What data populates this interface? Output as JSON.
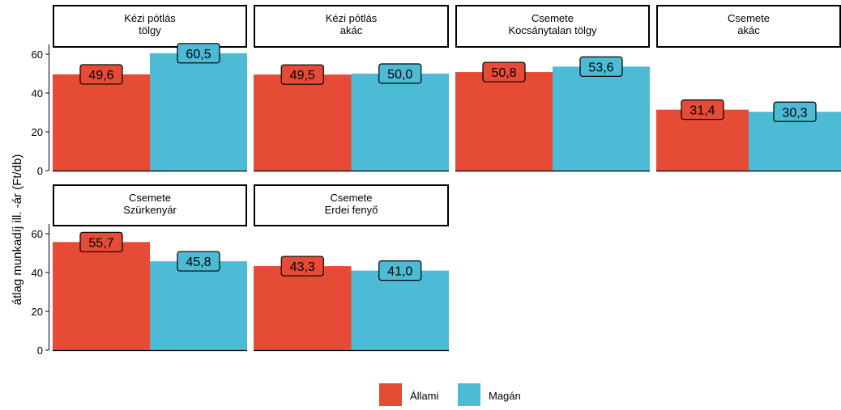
{
  "chart_data": {
    "type": "bar",
    "ylabel": "átlag munkadíj ill. -ár (Ft/db)",
    "xlabel": "",
    "ylim": [
      0,
      65
    ],
    "yticks": [
      0,
      20,
      40,
      60
    ],
    "grid": false,
    "legend_position": "bottom",
    "series": [
      {
        "name": "Állami",
        "color": "#E64B35"
      },
      {
        "name": "Magán",
        "color": "#4DBBD5"
      }
    ],
    "panels": [
      {
        "strip": [
          "Kézi pótlás",
          "tölgy"
        ],
        "values": [
          49.6,
          60.5
        ],
        "labels": [
          "49,6",
          "60,5"
        ]
      },
      {
        "strip": [
          "Kézi pótlás",
          "akác"
        ],
        "values": [
          49.5,
          50.0
        ],
        "labels": [
          "49,5",
          "50,0"
        ]
      },
      {
        "strip": [
          "Csemete",
          "Kocsánytalan tölgy"
        ],
        "values": [
          50.8,
          53.6
        ],
        "labels": [
          "50,8",
          "53,6"
        ]
      },
      {
        "strip": [
          "Csemete",
          "akác"
        ],
        "values": [
          31.4,
          30.3
        ],
        "labels": [
          "31,4",
          "30,3"
        ]
      },
      {
        "strip": [
          "Csemete",
          "Szürkenyár"
        ],
        "values": [
          55.7,
          45.8
        ],
        "labels": [
          "55,7",
          "45,8"
        ]
      },
      {
        "strip": [
          "Csemete",
          "Erdei fenyő"
        ],
        "values": [
          43.3,
          41.0
        ],
        "labels": [
          "43,3",
          "41,0"
        ]
      }
    ]
  }
}
